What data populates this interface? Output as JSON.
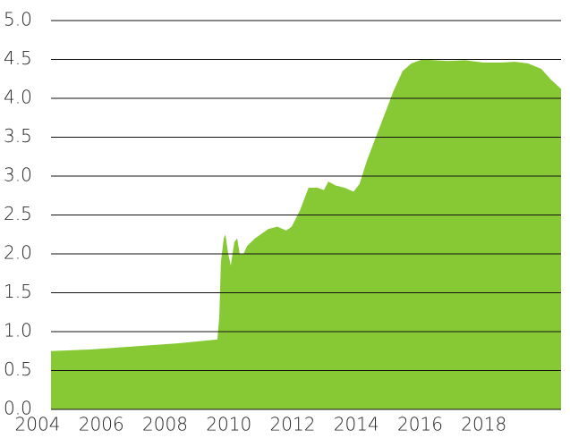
{
  "chart_data": {
    "type": "area",
    "color": "#86c935",
    "grid": true,
    "x": [
      2004.0,
      2005.21,
      2006.61,
      2008.01,
      2009.22,
      2009.28,
      2009.33,
      2009.42,
      2009.47,
      2009.56,
      2009.64,
      2009.75,
      2009.84,
      2009.92,
      2010.04,
      2010.15,
      2010.4,
      2010.82,
      2011.1,
      2011.38,
      2011.55,
      2011.8,
      2012.08,
      2012.36,
      2012.56,
      2012.7,
      2012.93,
      2013.21,
      2013.49,
      2013.68,
      2013.91,
      2014.19,
      2014.47,
      2014.75,
      2015.03,
      2015.31,
      2015.65,
      2016.44,
      2017.0,
      2017.56,
      2018.12,
      2018.54,
      2018.96,
      2019.38,
      2019.66,
      2020.0
    ],
    "values": [
      0.75,
      0.77,
      0.81,
      0.85,
      0.9,
      1.2,
      1.9,
      2.2,
      2.25,
      2.0,
      1.85,
      2.15,
      2.2,
      2.0,
      2.0,
      2.1,
      2.2,
      2.32,
      2.35,
      2.3,
      2.35,
      2.55,
      2.85,
      2.85,
      2.82,
      2.93,
      2.88,
      2.85,
      2.8,
      2.9,
      3.2,
      3.5,
      3.8,
      4.1,
      4.35,
      4.45,
      4.5,
      4.48,
      4.49,
      4.46,
      4.46,
      4.47,
      4.45,
      4.38,
      4.25,
      4.12
    ],
    "xlim": [
      2004,
      2020
    ],
    "xticks": [
      2004,
      2006,
      2008,
      2010,
      2012,
      2014,
      2016,
      2018
    ],
    "ylim": [
      0,
      5
    ],
    "yticks": [
      {
        "value": 0,
        "label": "0.0"
      },
      0.5,
      {
        "value": 1,
        "label": "1.0"
      },
      1.5,
      {
        "value": 2,
        "label": "2.0"
      },
      2.5,
      {
        "value": 3,
        "label": "3.0"
      },
      3.5,
      {
        "value": 4,
        "label": "4.0"
      },
      4.5,
      {
        "value": 5,
        "label": "5.0"
      }
    ]
  }
}
